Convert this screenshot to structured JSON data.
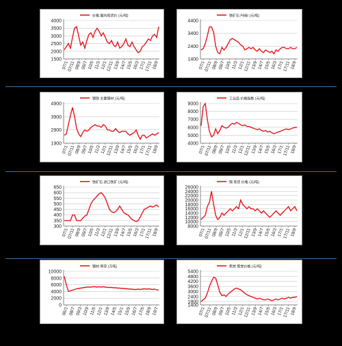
{
  "colors": {
    "line": "#e8141c",
    "grid": "#c8c8c8",
    "axis": "#666666",
    "text": "#222222"
  },
  "charts": [
    {
      "title": "价格 国内现货价 (元/吨)",
      "chart_data": {
        "type": "line",
        "title": "价格 国内现货价 (元/吨)",
        "y_ticks": [
          "4000",
          "3500",
          "3000",
          "2500",
          "2000",
          "1500"
        ],
        "ylim": [
          1500,
          4000
        ],
        "x_ticks": [
          "07/1",
          "07/11",
          "08/9",
          "09/7",
          "10/5",
          "11/3",
          "12/1",
          "12/11",
          "13/9",
          "14/7",
          "15/5",
          "16/3",
          "17/1",
          "17/11",
          "18/9"
        ],
        "series": [
          {
            "values": [
              2100,
              2300,
              2500,
              2200,
              2900,
              3500,
              3600,
              3000,
              2400,
              2600,
              2200,
              2700,
              3100,
              3200,
              2900,
              3300,
              3500,
              3300,
              3000,
              3200,
              2900,
              2600,
              2500,
              2700,
              2400,
              2300,
              2600,
              2200,
              2300,
              2500,
              2800,
              2400,
              2300,
              2600,
              2300,
              2100,
              1900,
              2000,
              2300,
              2400,
              2600,
              2800,
              2700,
              3000,
              3100,
              2900,
              3600
            ]
          }
        ]
      }
    },
    {
      "title": "铁矿石 PB粉 (元/吨)",
      "chart_data": {
        "type": "line",
        "title": "铁矿石 PB粉 (元/吨)",
        "y_ticks": [
          "4400",
          "3400",
          "2400",
          "1400"
        ],
        "ylim": [
          1400,
          4400
        ],
        "x_ticks": [
          "07/1",
          "07/11",
          "08/9",
          "09/7",
          "10/5",
          "11/3",
          "12/1",
          "12/11",
          "13/9",
          "14/7",
          "15/5",
          "16/3",
          "17/1",
          "17/11",
          "18/9"
        ],
        "series": [
          {
            "values": [
              2100,
              2200,
              2600,
              3200,
              3900,
              3900,
              3500,
              2400,
              1900,
              1800,
              2300,
              2100,
              2300,
              2600,
              2900,
              3000,
              2900,
              2800,
              2700,
              2500,
              2400,
              2100,
              2200,
              2300,
              2200,
              2300,
              2100,
              2000,
              2200,
              2000,
              1900,
              2100,
              2000,
              1900,
              2000,
              1800,
              2100,
              2000,
              2200,
              2300,
              2300,
              2200,
              2200,
              2300,
              2200,
              2200,
              2300
            ]
          }
        ]
      }
    },
    {
      "title": "钢铁 主要钢材 (元/吨)",
      "chart_data": {
        "type": "line",
        "title": "钢铁 主要钢材 (元/吨)",
        "y_ticks": [
          "4900",
          "3900",
          "2900",
          "1900"
        ],
        "ylim": [
          1900,
          4900
        ],
        "x_ticks": [
          "07/1",
          "07/11",
          "08/9",
          "09/7",
          "10/5",
          "11/3",
          "12/1",
          "12/11",
          "13/9",
          "14/7",
          "15/5",
          "16/3",
          "17/1",
          "17/11",
          "18/9"
        ],
        "series": [
          {
            "values": [
              2500,
              2600,
              3300,
              4000,
              4600,
              3900,
              3000,
              2600,
              2400,
              2700,
              2900,
              2800,
              2900,
              3100,
              3200,
              3300,
              3200,
              3200,
              3100,
              3300,
              3200,
              2900,
              2900,
              2800,
              2800,
              3000,
              2800,
              2700,
              2800,
              2800,
              2800,
              2600,
              2500,
              2600,
              2700,
              2900,
              2500,
              2200,
              2500,
              2500,
              2300,
              2400,
              2500,
              2600,
              2500,
              2600,
              2700
            ]
          }
        ]
      }
    },
    {
      "title": "工业品 价格指数 (元/吨)",
      "chart_data": {
        "type": "line",
        "title": "工业品 价格指数 (元/吨)",
        "y_ticks": [
          "9000",
          "8000",
          "7000",
          "6000",
          "5000",
          "4000"
        ],
        "ylim": [
          4000,
          9000
        ],
        "x_ticks": [
          "07/1",
          "07/11",
          "08/9",
          "09/7",
          "10/5",
          "11/3",
          "12/1",
          "12/11",
          "13/9",
          "14/7",
          "15/5",
          "16/3",
          "17/1",
          "17/11",
          "18/9"
        ],
        "series": [
          {
            "values": [
              6200,
              8600,
              9000,
              7000,
              5500,
              4800,
              5000,
              5800,
              5200,
              5600,
              6200,
              6000,
              5900,
              6000,
              6300,
              6500,
              6400,
              6600,
              6500,
              6300,
              6200,
              6300,
              6100,
              6100,
              6000,
              5900,
              5800,
              5700,
              5800,
              5600,
              5500,
              5600,
              5400,
              5500,
              5300,
              5200,
              5300,
              5400,
              5500,
              5600,
              5700,
              5800,
              5700,
              5800,
              5900,
              6000,
              6000
            ]
          }
        ]
      }
    },
    {
      "title": "铁矿石 进口铁矿 (元/吨)",
      "chart_data": {
        "type": "line",
        "title": "铁矿石 进口铁矿 (元/吨)",
        "y_ticks": [
          "650",
          "600",
          "550",
          "500",
          "450",
          "400",
          "350",
          "300"
        ],
        "ylim": [
          300,
          650
        ],
        "x_ticks": [
          "07/1",
          "07/11",
          "08/9",
          "09/7",
          "10/5",
          "11/3",
          "12/1",
          "12/11",
          "13/9",
          "14/7",
          "15/5",
          "16/3",
          "17/1",
          "17/11",
          "18/9"
        ],
        "series": [
          {
            "values": [
              350,
              350,
              350,
              350,
              400,
              400,
              350,
              350,
              350,
              370,
              390,
              400,
              450,
              500,
              530,
              550,
              570,
              590,
              600,
              580,
              550,
              500,
              450,
              430,
              420,
              430,
              450,
              480,
              450,
              420,
              410,
              400,
              380,
              360,
              350,
              340,
              350,
              380,
              420,
              450,
              460,
              470,
              480,
              470,
              480,
              490,
              470
            ]
          }
        ]
      }
    },
    {
      "title": "铜 现货 价格 (元/吨)",
      "chart_data": {
        "type": "line",
        "title": "铜 现货 价格 (元/吨)",
        "y_ticks": [
          "26000",
          "24000",
          "22000",
          "20000",
          "18000",
          "16000",
          "14000",
          "12000",
          "10000",
          "8000"
        ],
        "ylim": [
          8000,
          26000
        ],
        "x_ticks": [
          "07/1",
          "07/11",
          "08/9",
          "09/7",
          "10/5",
          "11/3",
          "12/1",
          "12/11",
          "13/9",
          "14/7",
          "15/5",
          "16/3",
          "17/1",
          "17/11",
          "18/9"
        ],
        "series": [
          {
            "values": [
              11000,
              12000,
              13000,
              17000,
              19000,
              24000,
              18000,
              13000,
              11000,
              12000,
              14000,
              13000,
              14000,
              15000,
              16000,
              15000,
              16000,
              17000,
              16000,
              20000,
              18000,
              17000,
              16000,
              17000,
              16000,
              16000,
              15000,
              16000,
              15000,
              14000,
              15000,
              14000,
              13000,
              12000,
              13000,
              14000,
              15000,
              14000,
              13000,
              14000,
              15000,
              16000,
              17000,
              15000,
              16000,
              17000,
              15000
            ]
          }
        ]
      }
    },
    {
      "title": "钢材 库存 (万吨)",
      "chart_data": {
        "type": "line",
        "title": "钢材 库存 (万吨)",
        "y_ticks": [
          "10000",
          "8000",
          "6000",
          "4000",
          "2000",
          "0"
        ],
        "ylim": [
          0,
          10000
        ],
        "x_ticks": [
          "06/1",
          "08/7",
          "09/3",
          "10/9",
          "11/5",
          "12/1",
          "13/9",
          "14/5",
          "15/1",
          "15/9",
          "16/7",
          "17/5",
          "18/9",
          "19/7"
        ],
        "series": [
          {
            "values": [
              8500,
              6000,
              4000,
              4200,
              4400,
              4600,
              4800,
              4900,
              5000,
              5100,
              5200,
              5300,
              5300,
              5300,
              5400,
              5400,
              5300,
              5400,
              5300,
              5400,
              5300,
              5200,
              5200,
              5200,
              5100,
              5100,
              5000,
              5000,
              4900,
              4900,
              4800,
              4800,
              4700,
              4700,
              4600,
              4600,
              4700,
              4600,
              4700,
              4800,
              4700,
              4800,
              4700,
              4600,
              4700,
              4500,
              4400
            ]
          }
        ]
      }
    },
    {
      "title": "焦炭 焦炭价格 (元/吨)",
      "chart_data": {
        "type": "line",
        "title": "焦炭 焦炭价格 (元/吨)",
        "y_ticks": [
          "5400",
          "4800",
          "4200",
          "3600",
          "3000",
          "2400",
          "1800",
          "1400"
        ],
        "ylim": [
          1400,
          5400
        ],
        "x_ticks": [
          "07/1",
          "07/11",
          "08/9",
          "09/7",
          "10/5",
          "11/3",
          "12/1",
          "12/11",
          "13/9",
          "14/7",
          "15/5",
          "16/3",
          "17/1",
          "17/11",
          "18/9"
        ],
        "series": [
          {
            "values": [
              1800,
              2000,
              2200,
              2800,
              3600,
              4200,
              4700,
              4600,
              3800,
              2900,
              2500,
              2600,
              2400,
              2700,
              2900,
              3100,
              3300,
              3400,
              3300,
              3200,
              3000,
              2800,
              2600,
              2500,
              2400,
              2300,
              2200,
              2100,
              2200,
              2100,
              2000,
              2000,
              2100,
              2000,
              1900,
              2000,
              2100,
              2000,
              2100,
              2200,
              2100,
              2200,
              2300,
              2200,
              2300,
              2300,
              2400
            ]
          }
        ]
      }
    }
  ]
}
